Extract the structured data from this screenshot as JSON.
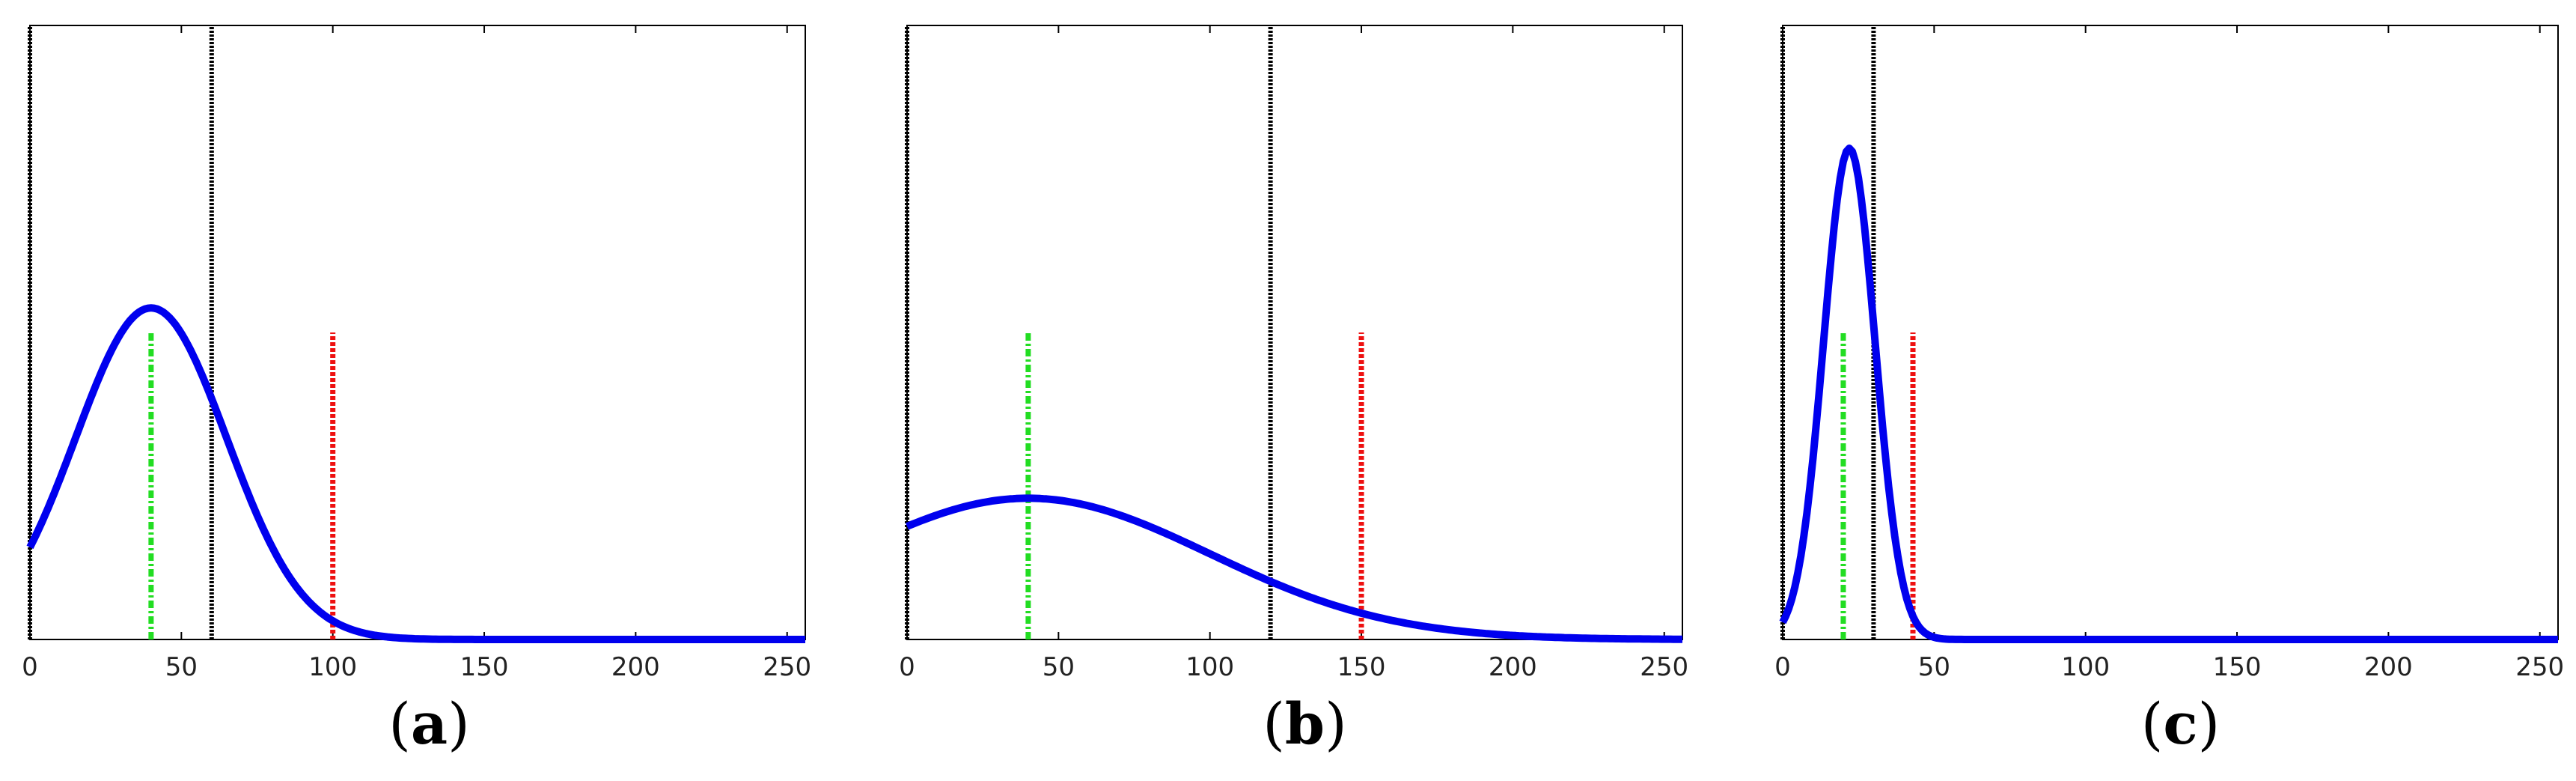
{
  "colors": {
    "curve": "#0000ee",
    "mean_line": "#22dd22",
    "red_line": "#ee1111",
    "black_line": "#000000"
  },
  "chart_data": [
    {
      "type": "line",
      "panel_label": "a",
      "xlim": [
        0,
        256
      ],
      "ylim": [
        0,
        1
      ],
      "xticks": [
        0,
        50,
        100,
        150,
        200,
        250
      ],
      "xtick_labels": [
        "0",
        "50",
        "100",
        "150",
        "200",
        "250"
      ],
      "curve": {
        "mean": 40,
        "std": 25,
        "y0": 0.22,
        "peak": 0.54
      },
      "vlines": [
        {
          "role": "black",
          "x": 0,
          "y_top": 1.0
        },
        {
          "role": "black",
          "x": 60,
          "y_top": 1.0
        },
        {
          "role": "green",
          "x": 40,
          "y_top": 0.5
        },
        {
          "role": "red",
          "x": 100,
          "y_top": 0.5
        }
      ]
    },
    {
      "type": "line",
      "panel_label": "b",
      "xlim": [
        0,
        256
      ],
      "ylim": [
        0,
        1
      ],
      "xticks": [
        0,
        50,
        100,
        150,
        200,
        250
      ],
      "xtick_labels": [
        "0",
        "50",
        "100",
        "150",
        "200",
        "250"
      ],
      "curve": {
        "mean": 40,
        "std": 60,
        "y0": 0.19,
        "peak": 0.23
      },
      "vlines": [
        {
          "role": "black",
          "x": 0,
          "y_top": 1.0
        },
        {
          "role": "black",
          "x": 120,
          "y_top": 1.0
        },
        {
          "role": "green",
          "x": 40,
          "y_top": 0.5
        },
        {
          "role": "red",
          "x": 150,
          "y_top": 0.5
        }
      ]
    },
    {
      "type": "line",
      "panel_label": "c",
      "xlim": [
        0,
        256
      ],
      "ylim": [
        0,
        1
      ],
      "xticks": [
        0,
        50,
        100,
        150,
        200,
        250
      ],
      "xtick_labels": [
        "0",
        "50",
        "100",
        "150",
        "200",
        "250"
      ],
      "curve": {
        "mean": 22,
        "std": 8.5,
        "y0": 0.1,
        "peak": 0.8
      },
      "vlines": [
        {
          "role": "black",
          "x": 0,
          "y_top": 1.0
        },
        {
          "role": "black",
          "x": 30,
          "y_top": 1.0
        },
        {
          "role": "green",
          "x": 20,
          "y_top": 0.5
        },
        {
          "role": "red",
          "x": 43,
          "y_top": 0.5
        }
      ]
    }
  ]
}
